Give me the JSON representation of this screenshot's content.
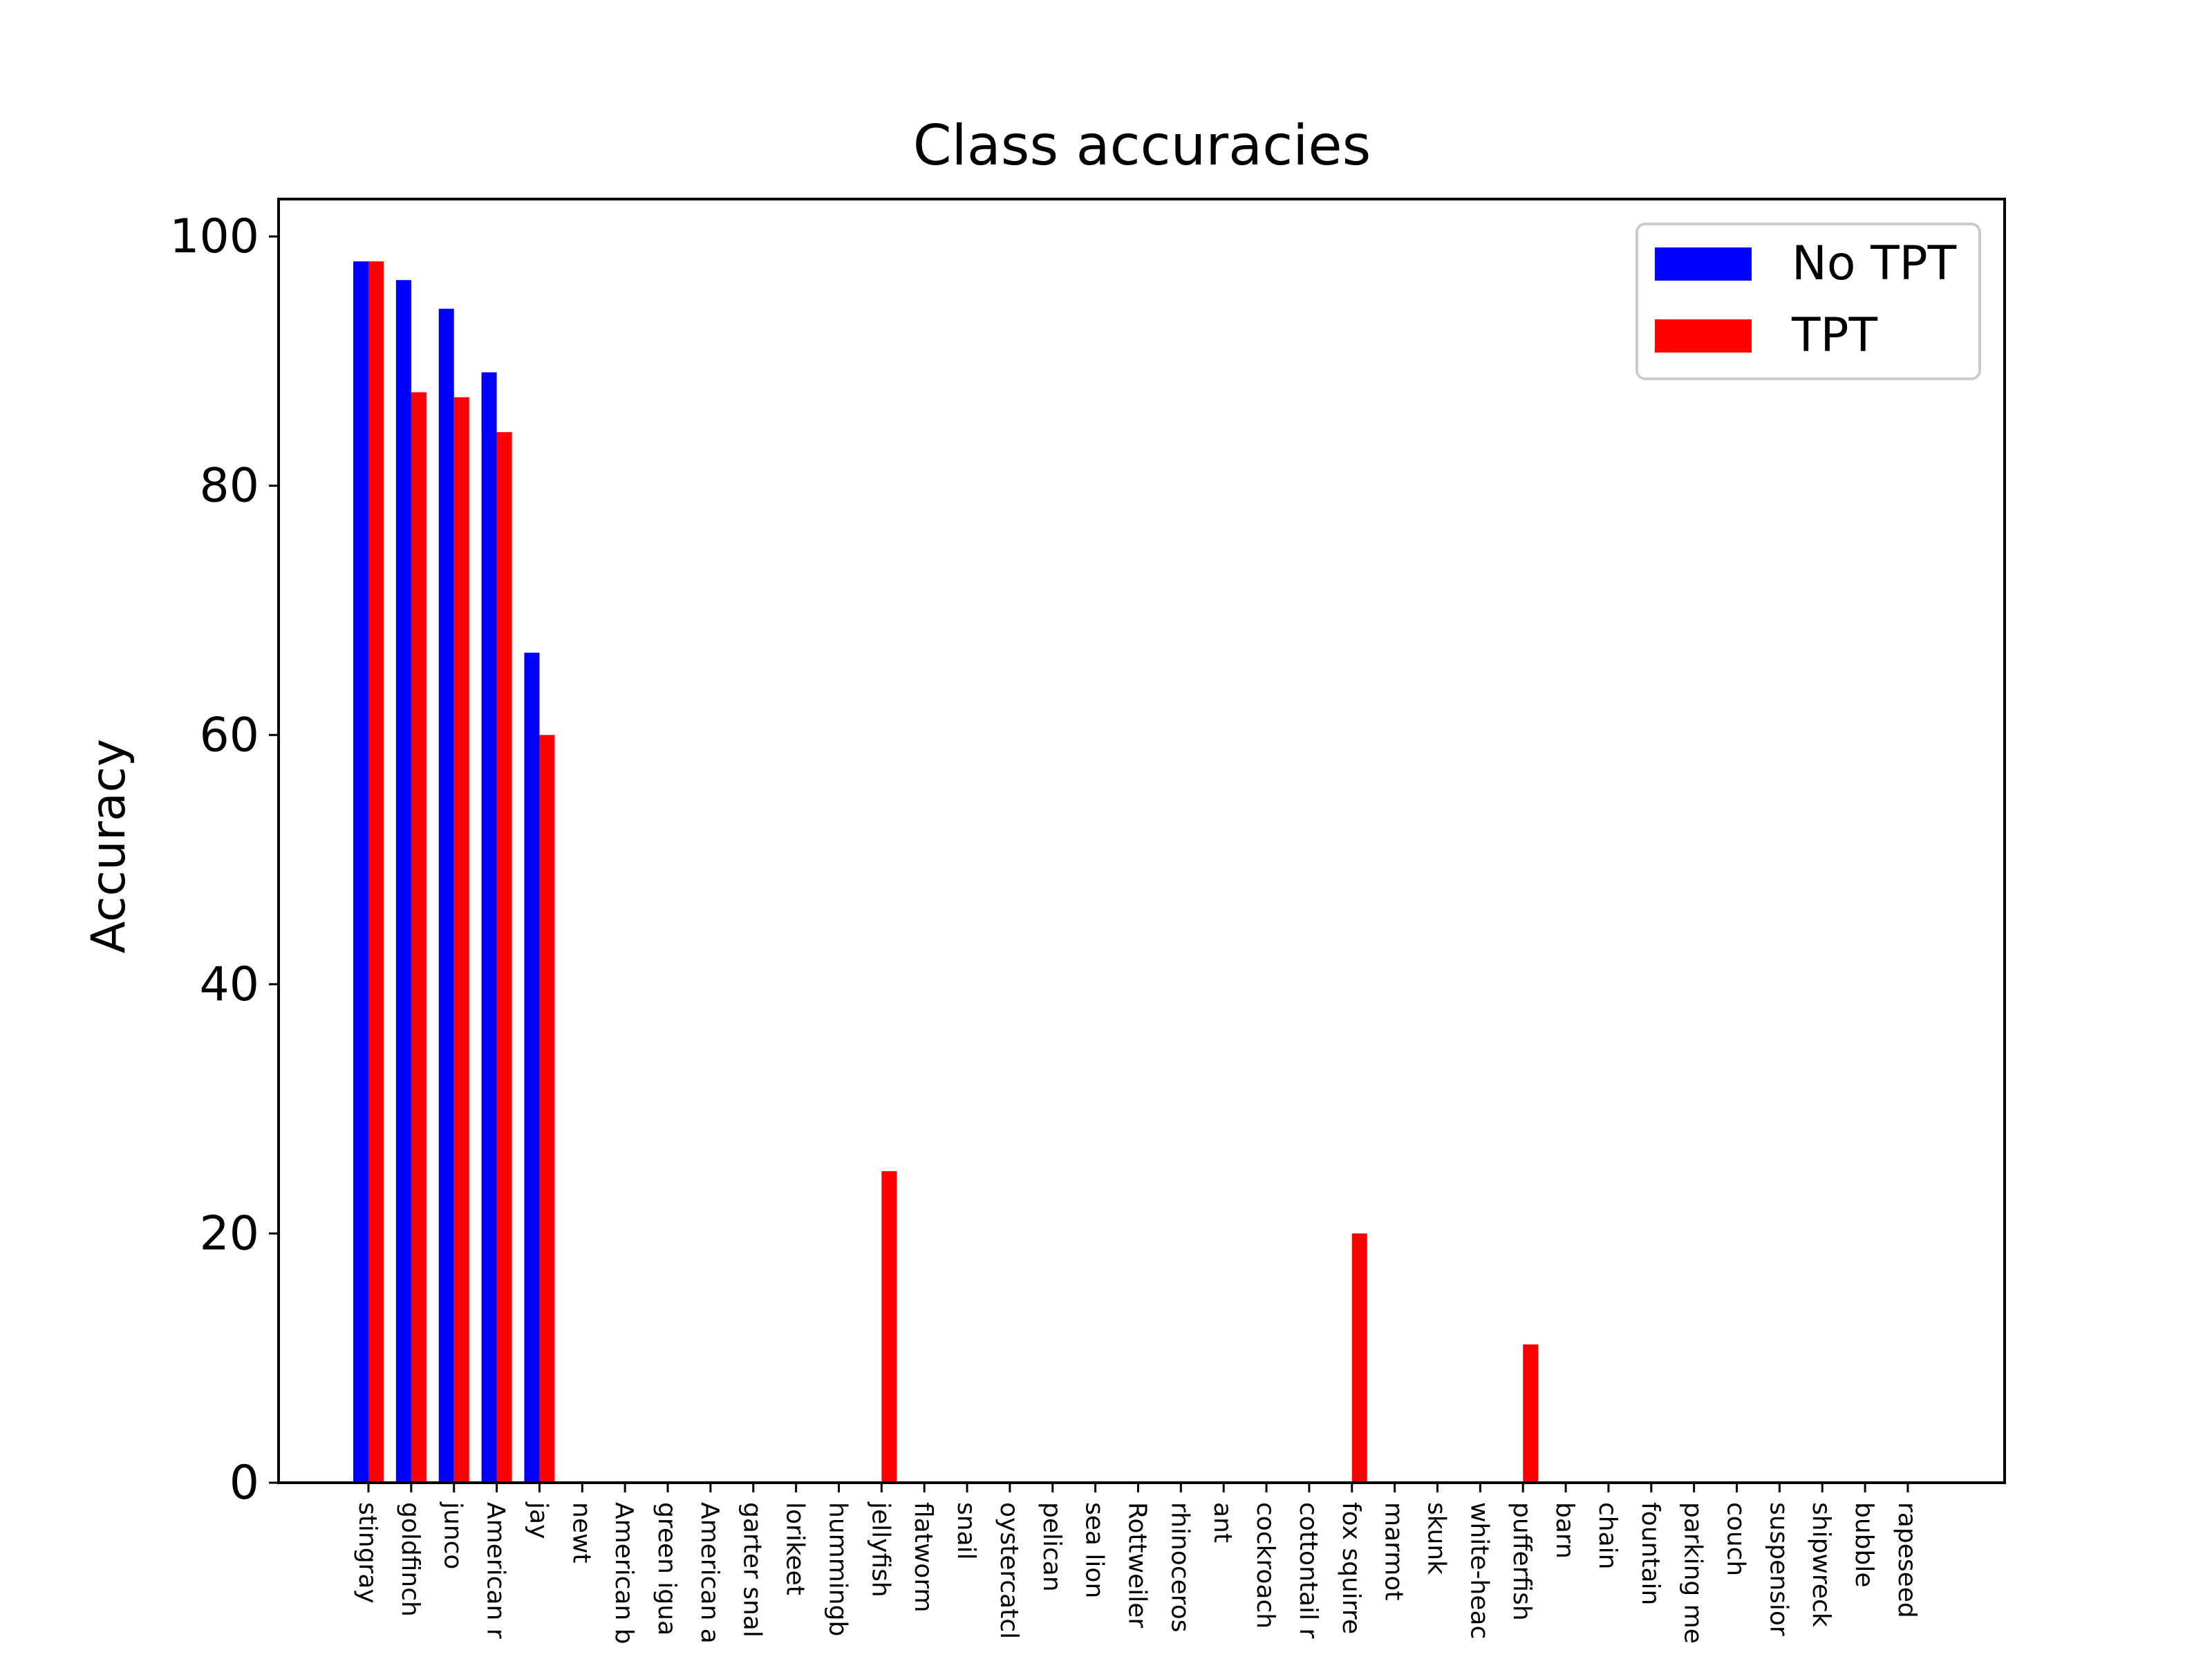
{
  "chart_data": {
    "type": "bar",
    "title": "Class accuracies",
    "xlabel": "",
    "ylabel": "Accuracy",
    "ylim": [
      0,
      103
    ],
    "yticks": [
      0,
      20,
      40,
      60,
      80,
      100
    ],
    "grid": false,
    "legend_position": "top-right",
    "categories": [
      "stingray",
      "goldfinch",
      "junco",
      "American r",
      "jay",
      "newt",
      "American b",
      "green igua",
      "American a",
      "garter snal",
      "lorikeet",
      "hummingb",
      "jellyfish",
      "flatworm",
      "snail",
      "oystercatcl",
      "pelican",
      "sea lion",
      "Rottweiler",
      "rhinoceros",
      "ant",
      "cockroach",
      "cottontail r",
      "fox squirre",
      "marmot",
      "skunk",
      "white-heac",
      "pufferfish",
      "barn",
      "chain",
      "fountain",
      "parking me",
      "couch",
      "suspensior",
      "shipwreck",
      "bubble",
      "rapeseed"
    ],
    "series": [
      {
        "name": "No TPT",
        "color": "#0000ff",
        "values": [
          98,
          96.5,
          94.2,
          89.1,
          66.6,
          0,
          0,
          0,
          0,
          0,
          0,
          0,
          0,
          0,
          0,
          0,
          0,
          0,
          0,
          0,
          0,
          0,
          0,
          0,
          0,
          0,
          0,
          0,
          0,
          0,
          0,
          0,
          0,
          0,
          0,
          0,
          0
        ]
      },
      {
        "name": "TPT",
        "color": "#ff0000",
        "values": [
          98,
          87.5,
          87.1,
          84.3,
          60,
          0,
          0,
          0,
          0,
          0,
          0,
          0,
          25,
          0,
          0,
          0,
          0,
          0,
          0,
          0,
          0,
          0,
          0,
          20,
          0,
          0,
          0,
          11.1,
          0,
          0,
          0,
          0,
          0,
          0,
          0,
          0,
          0
        ]
      }
    ]
  }
}
